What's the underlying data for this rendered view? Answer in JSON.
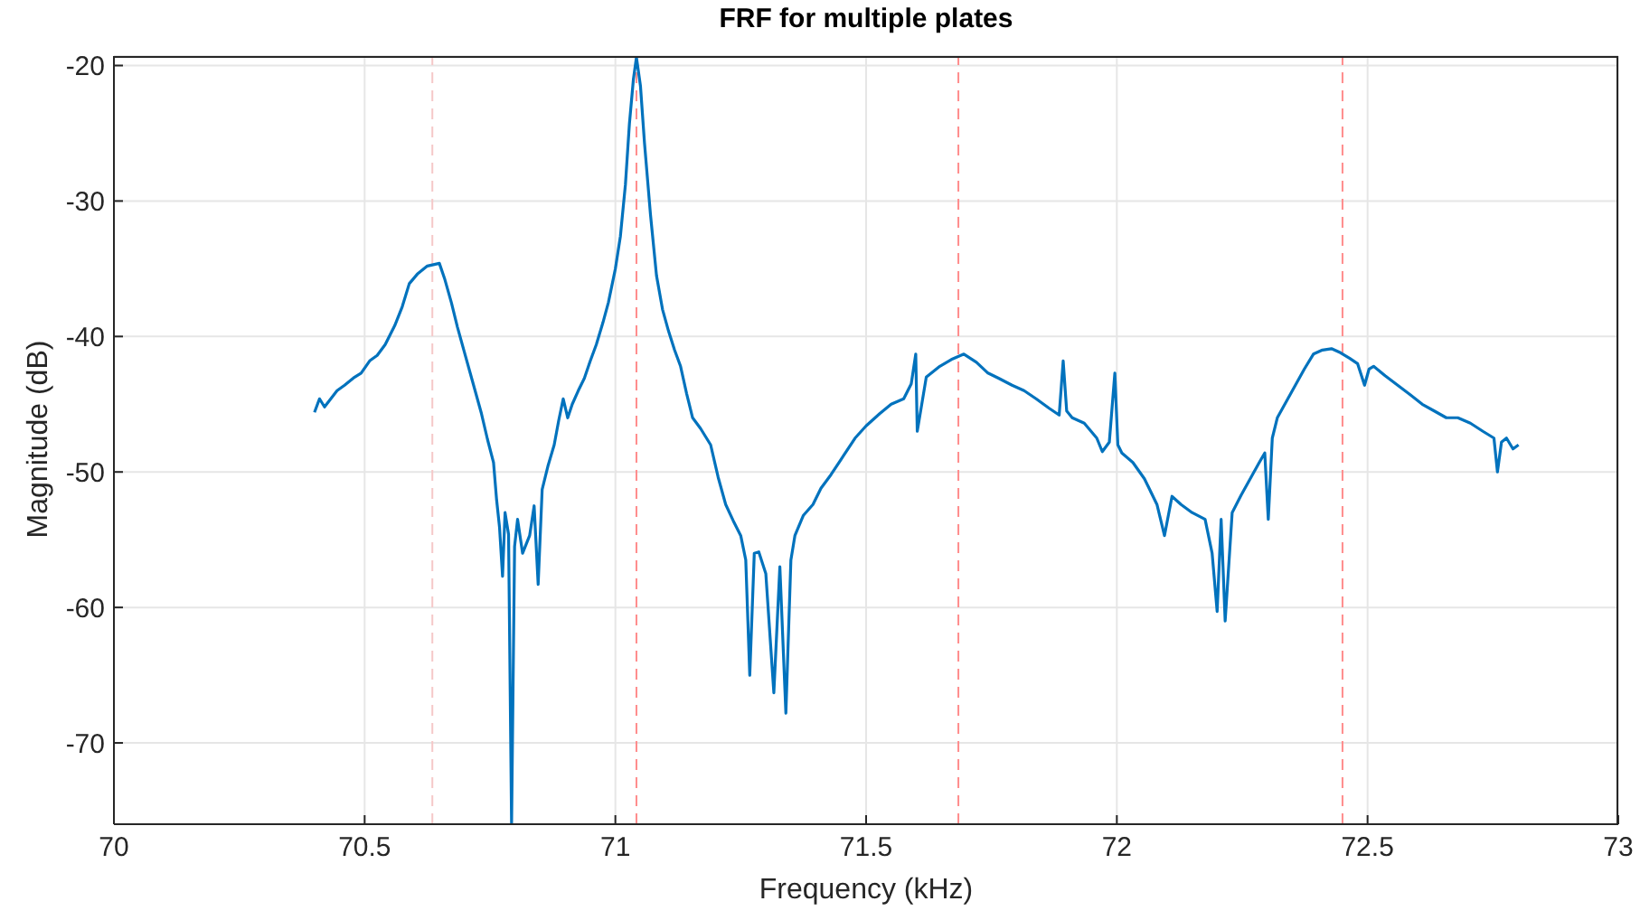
{
  "chart_data": {
    "type": "line",
    "title": "FRF for multiple plates",
    "xlabel": "Frequency (kHz)",
    "ylabel": "Magnitude (dB)",
    "x": [
      70.4,
      70.41,
      70.42,
      70.445,
      70.46,
      70.48,
      70.493,
      70.51,
      70.525,
      70.541,
      70.56,
      70.575,
      70.589,
      70.605,
      70.625,
      70.649,
      70.66,
      70.673,
      70.685,
      70.697,
      70.715,
      70.733,
      70.745,
      70.757,
      70.763,
      70.769,
      70.775,
      70.78,
      70.787,
      70.793,
      70.799,
      70.805,
      70.815,
      70.829,
      70.838,
      70.846,
      70.854,
      70.866,
      70.878,
      70.887,
      70.896,
      70.905,
      70.914,
      70.926,
      70.938,
      70.95,
      70.962,
      70.975,
      70.986,
      71.0,
      71.01,
      71.02,
      71.028,
      71.036,
      71.042,
      71.05,
      71.058,
      71.07,
      71.082,
      71.094,
      71.106,
      71.118,
      71.13,
      71.142,
      71.154,
      71.17,
      71.19,
      71.205,
      71.22,
      71.235,
      71.25,
      71.26,
      71.268,
      71.277,
      71.286,
      71.3,
      71.316,
      71.328,
      71.34,
      71.35,
      71.358,
      71.375,
      71.394,
      71.41,
      71.43,
      71.455,
      71.478,
      71.5,
      71.527,
      71.55,
      71.575,
      71.59,
      71.599,
      71.602,
      71.62,
      71.647,
      71.67,
      71.695,
      71.72,
      71.743,
      71.765,
      71.791,
      71.815,
      71.839,
      71.865,
      71.885,
      71.893,
      71.9,
      71.911,
      71.935,
      71.96,
      71.971,
      71.985,
      71.996,
      72.002,
      72.01,
      72.032,
      72.055,
      72.08,
      72.095,
      72.11,
      72.128,
      72.15,
      72.176,
      72.19,
      72.2,
      72.208,
      72.216,
      72.23,
      72.248,
      72.266,
      72.284,
      72.295,
      72.302,
      72.31,
      72.32,
      72.338,
      72.356,
      72.374,
      72.392,
      72.41,
      72.428,
      72.446,
      72.464,
      72.48,
      72.494,
      72.503,
      72.512,
      72.535,
      72.56,
      72.585,
      72.609,
      72.633,
      72.657,
      72.68,
      72.705,
      72.73,
      72.752,
      72.759,
      72.767,
      72.777,
      72.79,
      72.801
    ],
    "series": [
      {
        "color": "#0072bd",
        "values": [
          -45.6,
          -44.6,
          -45.2,
          -44.0,
          -43.6,
          -43.0,
          -42.7,
          -41.8,
          -41.4,
          -40.6,
          -39.2,
          -37.8,
          -36.1,
          -35.4,
          -34.8,
          -34.6,
          -35.8,
          -37.5,
          -39.3,
          -40.9,
          -43.3,
          -45.7,
          -47.6,
          -49.3,
          -52.0,
          -54.1,
          -57.7,
          -53.0,
          -54.6,
          -76,
          -55.5,
          -53.5,
          -56.0,
          -54.7,
          -52.5,
          -58.3,
          -51.3,
          -49.5,
          -48.0,
          -46.2,
          -44.6,
          -46.0,
          -45.0,
          -44.0,
          -43.1,
          -41.8,
          -40.6,
          -39.0,
          -37.5,
          -35.0,
          -32.6,
          -28.8,
          -24.3,
          -21.0,
          -19.4,
          -21.5,
          -25.7,
          -31.0,
          -35.5,
          -38.0,
          -39.6,
          -41.0,
          -42.2,
          -44.2,
          -46.0,
          -46.8,
          -48.0,
          -50.4,
          -52.4,
          -53.6,
          -54.7,
          -56.5,
          -65.0,
          -56.0,
          -55.9,
          -57.5,
          -66.3,
          -57.0,
          -67.8,
          -56.5,
          -54.7,
          -53.2,
          -52.4,
          -51.2,
          -50.2,
          -48.8,
          -47.5,
          -46.6,
          -45.7,
          -45.0,
          -44.6,
          -43.5,
          -41.3,
          -47.0,
          -43.0,
          -42.2,
          -41.7,
          -41.3,
          -41.9,
          -42.7,
          -43.1,
          -43.6,
          -44.0,
          -44.6,
          -45.3,
          -45.8,
          -41.8,
          -45.5,
          -46.0,
          -46.4,
          -47.5,
          -48.5,
          -47.8,
          -42.7,
          -48.0,
          -48.6,
          -49.3,
          -50.5,
          -52.4,
          -54.7,
          -51.8,
          -52.4,
          -53.0,
          -53.5,
          -56.0,
          -60.3,
          -53.5,
          -61.0,
          -53.0,
          -51.7,
          -50.5,
          -49.3,
          -48.6,
          -53.5,
          -47.5,
          -46.0,
          -44.8,
          -43.6,
          -42.4,
          -41.3,
          -41.0,
          -40.9,
          -41.2,
          -41.6,
          -42.0,
          -43.6,
          -42.4,
          -42.2,
          -42.9,
          -43.6,
          -44.3,
          -45.0,
          -45.5,
          -46.0,
          -46.0,
          -46.4,
          -47.0,
          -47.5,
          -50.0,
          -47.8,
          -47.5,
          -48.3,
          -48.0
        ]
      }
    ],
    "xlim": [
      70,
      73
    ],
    "ylim": [
      -76,
      -19.3
    ],
    "xticks": [
      70,
      70.5,
      71,
      71.5,
      72,
      72.5,
      73
    ],
    "yticks": [
      -70,
      -60,
      -50,
      -40,
      -30,
      -20
    ],
    "grid": true,
    "line_style": "solid",
    "ref_lines": [
      {
        "axis": "x",
        "value": 70.635,
        "color": "#f5c8c8",
        "line_style": "dashed"
      },
      {
        "axis": "x",
        "value": 71.042,
        "color": "#ff8c8c",
        "line_style": "dashed"
      },
      {
        "axis": "x",
        "value": 71.684,
        "color": "#ff8c8c",
        "line_style": "dashed"
      },
      {
        "axis": "x",
        "value": 72.45,
        "color": "#ff8c8c",
        "line_style": "dashed"
      }
    ]
  }
}
